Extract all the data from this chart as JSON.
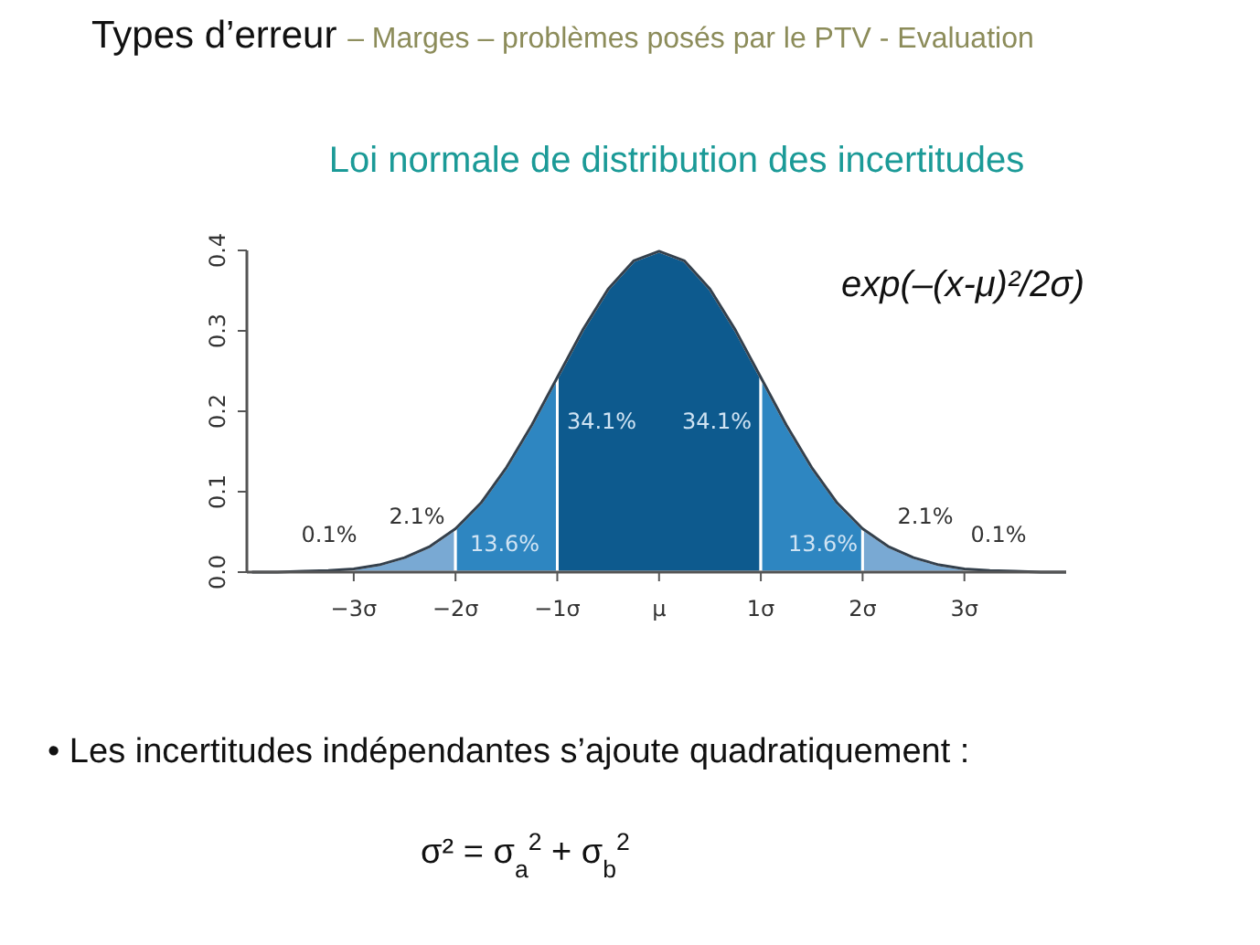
{
  "chart_data": {
    "type": "area",
    "title": "Types d’erreur – Marges – problèmes posés par le PTV - Evaluation",
    "subtitle": "Loi normale de distribution des incertitudes",
    "xlim": [
      -4.05,
      4.0
    ],
    "xticks": [
      {
        "value": -3,
        "label": "−3σ"
      },
      {
        "value": -2,
        "label": "−2σ"
      },
      {
        "value": -1,
        "label": "−1σ"
      },
      {
        "value": 0,
        "label": "μ"
      },
      {
        "value": 1,
        "label": "1σ"
      },
      {
        "value": 2,
        "label": "2σ"
      },
      {
        "value": 3,
        "label": "3σ"
      }
    ],
    "ylim": [
      0,
      0.4
    ],
    "yticks": [
      {
        "value": 0,
        "label": "0.0"
      },
      {
        "value": 0.1,
        "label": "0.1"
      },
      {
        "value": 0.2,
        "label": "0.2"
      },
      {
        "value": 0.3,
        "label": "0.3"
      },
      {
        "value": 0.4,
        "label": "0.4"
      }
    ],
    "grid": false,
    "series": [
      {
        "color": "#79a9d3",
        "x": [
          -3,
          -2.75,
          -2.5,
          -2.25,
          -2
        ],
        "values": [
          0.004,
          0.009,
          0.018,
          0.032,
          0.054
        ]
      },
      {
        "color": "#2e86c1",
        "x": [
          -2,
          -1.75,
          -1.5,
          -1.25,
          -1
        ],
        "values": [
          0.054,
          0.086,
          0.13,
          0.183,
          0.242
        ]
      },
      {
        "color": "#0d5a8e",
        "x": [
          -1,
          -0.75,
          -0.5,
          -0.25,
          0,
          0.25,
          0.5,
          0.75,
          1
        ],
        "values": [
          0.242,
          0.301,
          0.352,
          0.387,
          0.399,
          0.387,
          0.352,
          0.301,
          0.242
        ]
      },
      {
        "color": "#2e86c1",
        "x": [
          1,
          1.25,
          1.5,
          1.75,
          2
        ],
        "values": [
          0.242,
          0.183,
          0.13,
          0.086,
          0.054
        ]
      },
      {
        "color": "#79a9d3",
        "x": [
          2,
          2.25,
          2.5,
          2.75,
          3
        ],
        "values": [
          0.054,
          0.032,
          0.018,
          0.009,
          0.004
        ]
      },
      {
        "type": "line",
        "color": "#34404c",
        "x": [
          -4,
          -3.75,
          -3.5,
          -3.25,
          -3,
          -2.75,
          -2.5,
          -2.25,
          -2,
          -1.75,
          -1.5,
          -1.25,
          -1,
          -0.75,
          -0.5,
          -0.25,
          0,
          0.25,
          0.5,
          0.75,
          1,
          1.25,
          1.5,
          1.75,
          2,
          2.25,
          2.5,
          2.75,
          3,
          3.25,
          3.5,
          3.75,
          4
        ],
        "values": [
          0.0,
          0.0,
          0.001,
          0.002,
          0.004,
          0.009,
          0.018,
          0.032,
          0.054,
          0.086,
          0.13,
          0.183,
          0.242,
          0.301,
          0.352,
          0.387,
          0.399,
          0.387,
          0.352,
          0.301,
          0.242,
          0.183,
          0.13,
          0.086,
          0.054,
          0.032,
          0.018,
          0.009,
          0.004,
          0.002,
          0.001,
          0.0,
          0.0
        ]
      }
    ],
    "annotations": [
      "34.1%",
      "34.1%",
      "13.6%",
      "13.6%",
      "2.1%",
      "2.1%",
      "0.1%",
      "0.1%",
      "exp(–(x-μ)²/2σ)",
      "• Les incertitudes indépendantes s’ajoute quadratiquement :",
      "σ² = σ$_{a}$$^{2}$ + σ$_{b}$$^{2}$"
    ]
  }
}
